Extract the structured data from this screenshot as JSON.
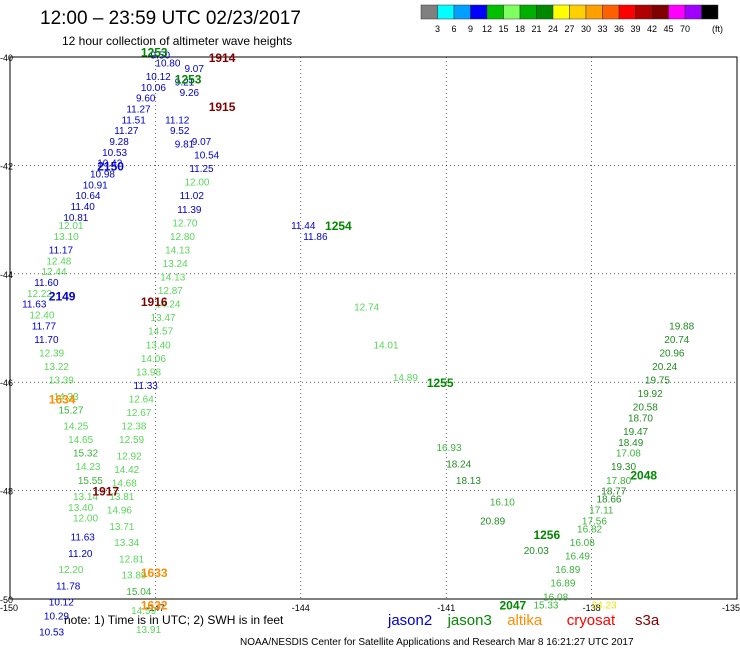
{
  "header": {
    "title": "12:00 – 23:59 UTC 02/23/2017",
    "subtitle": "12 hour collection of altimeter wave heights"
  },
  "legend": {
    "colors": [
      "#808080",
      "#00ffff",
      "#00a0ff",
      "#0000ff",
      "#00c000",
      "#80ff60",
      "#00b000",
      "#008800",
      "#ffff00",
      "#ffd000",
      "#ffa000",
      "#ff6000",
      "#ff0000",
      "#b00000",
      "#800000",
      "#ff00ff",
      "#a000ff",
      "#000000"
    ],
    "labels": [
      "3",
      "6",
      "9",
      "12",
      "15",
      "18",
      "21",
      "24",
      "27",
      "30",
      "33",
      "36",
      "39",
      "42",
      "45",
      "70"
    ],
    "unit": "(ft)"
  },
  "note": {
    "text": "note:  1) Time is in UTC;  2) SWH is in feet",
    "satellites": [
      {
        "name": "jason2",
        "color": "#0000cc"
      },
      {
        "name": "jason3",
        "color": "#008800"
      },
      {
        "name": "altika",
        "color": "#ff8c00"
      },
      {
        "name": "cryosat",
        "color": "#ff0000"
      },
      {
        "name": "s3a",
        "color": "#800000"
      }
    ]
  },
  "credit": "NOAA/NESDIS Center for Satellite Applications and Research    Mar  8 16:21:27 UTC 2017",
  "chart_data": {
    "type": "scatter",
    "title": "12:00 – 23:59 UTC 02/23/2017",
    "subtitle": "12 hour collection of altimeter wave heights",
    "xlim": [
      -150,
      -135
    ],
    "ylim": [
      -50,
      -40
    ],
    "xticks": [
      "-150",
      "-147",
      "-144",
      "-141",
      "-138",
      "-135"
    ],
    "yticks": [
      "-40",
      "-42",
      "-44",
      "-46",
      "-48",
      "-50"
    ],
    "grid": true,
    "pass_labels": [
      {
        "text": "1253",
        "lon": -147.3,
        "lat": -39.9,
        "color": "#008800"
      },
      {
        "text": "1914",
        "lon": -145.9,
        "lat": -40.0,
        "color": "#800000"
      },
      {
        "text": "1253",
        "lon": -146.6,
        "lat": -40.4,
        "color": "#008800"
      },
      {
        "text": "1915",
        "lon": -145.9,
        "lat": -40.9,
        "color": "#800000"
      },
      {
        "text": "2150",
        "lon": -148.2,
        "lat": -42.0,
        "color": "#0000cc"
      },
      {
        "text": "1254",
        "lon": -143.5,
        "lat": -43.1,
        "color": "#008800"
      },
      {
        "text": "2149",
        "lon": -149.2,
        "lat": -44.4,
        "color": "#0000cc"
      },
      {
        "text": "1916",
        "lon": -147.3,
        "lat": -44.5,
        "color": "#800000"
      },
      {
        "text": "1255",
        "lon": -141.4,
        "lat": -46.0,
        "color": "#008800"
      },
      {
        "text": "1634",
        "lon": -149.2,
        "lat": -46.3,
        "color": "#ff8c00"
      },
      {
        "text": "1917",
        "lon": -148.3,
        "lat": -48.0,
        "color": "#800000"
      },
      {
        "text": "2048",
        "lon": -137.2,
        "lat": -47.7,
        "color": "#008800"
      },
      {
        "text": "1256",
        "lon": -139.2,
        "lat": -48.8,
        "color": "#008800"
      },
      {
        "text": "1633",
        "lon": -147.3,
        "lat": -49.5,
        "color": "#ff8c00"
      },
      {
        "text": "2047",
        "lon": -139.9,
        "lat": -50.1,
        "color": "#008800"
      },
      {
        "text": "1632",
        "lon": -147.3,
        "lat": -50.1,
        "color": "#ff8c00"
      }
    ],
    "tracks": [
      {
        "name": "jason2 2150",
        "points": [
          {
            "lon": -147.1,
            "lat": -39.95,
            "v": "9.50"
          },
          {
            "lon": -147.0,
            "lat": -40.1,
            "v": "10.80"
          },
          {
            "lon": -147.2,
            "lat": -40.35,
            "v": "10.12"
          },
          {
            "lon": -147.3,
            "lat": -40.55,
            "v": "10.06"
          },
          {
            "lon": -147.4,
            "lat": -40.75,
            "v": "9.60"
          },
          {
            "lon": -147.6,
            "lat": -40.95,
            "v": "11.27"
          },
          {
            "lon": -147.7,
            "lat": -41.15,
            "v": "11.51"
          },
          {
            "lon": -147.85,
            "lat": -41.35,
            "v": "11.27"
          },
          {
            "lon": -147.95,
            "lat": -41.55,
            "v": "9.28"
          },
          {
            "lon": -148.1,
            "lat": -41.75,
            "v": "10.53"
          },
          {
            "lon": -148.2,
            "lat": -41.95,
            "v": "10.42"
          },
          {
            "lon": -148.35,
            "lat": -42.15,
            "v": "10.98"
          },
          {
            "lon": -148.5,
            "lat": -42.35,
            "v": "10.91"
          },
          {
            "lon": -148.65,
            "lat": -42.55,
            "v": "10.64"
          },
          {
            "lon": -148.75,
            "lat": -42.75,
            "v": "11.40"
          },
          {
            "lon": -148.9,
            "lat": -42.95,
            "v": "10.81"
          }
        ]
      },
      {
        "name": "jason3 1254 (descending)",
        "points": [
          {
            "lon": -149.0,
            "lat": -43.1,
            "v": "12.01"
          },
          {
            "lon": -149.1,
            "lat": -43.3,
            "v": "13.10"
          },
          {
            "lon": -149.2,
            "lat": -43.55,
            "v": "11.17"
          },
          {
            "lon": -149.25,
            "lat": -43.75,
            "v": "12.48"
          },
          {
            "lon": -149.35,
            "lat": -43.95,
            "v": "12.44"
          },
          {
            "lon": -149.5,
            "lat": -44.15,
            "v": "11.60"
          },
          {
            "lon": -149.65,
            "lat": -44.35,
            "v": "12.22"
          },
          {
            "lon": -149.75,
            "lat": -44.55,
            "v": "11.63"
          },
          {
            "lon": -149.6,
            "lat": -44.75,
            "v": "12.40"
          },
          {
            "lon": -149.55,
            "lat": -44.95,
            "v": "11.77"
          },
          {
            "lon": -149.5,
            "lat": -45.2,
            "v": "11.70"
          },
          {
            "lon": -149.4,
            "lat": -45.45,
            "v": "12.39"
          },
          {
            "lon": -149.3,
            "lat": -45.7,
            "v": "13.22"
          },
          {
            "lon": -149.2,
            "lat": -45.95,
            "v": "13.39"
          },
          {
            "lon": -149.1,
            "lat": -46.25,
            "v": "14.33"
          },
          {
            "lon": -149.0,
            "lat": -46.5,
            "v": "15.27"
          },
          {
            "lon": -148.9,
            "lat": -46.8,
            "v": "14.25"
          },
          {
            "lon": -148.8,
            "lat": -47.05,
            "v": "14.65"
          },
          {
            "lon": -148.7,
            "lat": -47.3,
            "v": "15.32"
          },
          {
            "lon": -148.65,
            "lat": -47.55,
            "v": "14.23"
          },
          {
            "lon": -148.6,
            "lat": -47.8,
            "v": "15.55"
          },
          {
            "lon": -148.7,
            "lat": -48.1,
            "v": "13.14"
          },
          {
            "lon": -148.8,
            "lat": -48.3,
            "v": "13.40"
          }
        ]
      },
      {
        "name": "jason2 2149",
        "points": [
          {
            "lon": -148.7,
            "lat": -48.5,
            "v": "12.00"
          },
          {
            "lon": -148.75,
            "lat": -48.85,
            "v": "11.63"
          },
          {
            "lon": -148.8,
            "lat": -49.15,
            "v": "11.20"
          },
          {
            "lon": -149.0,
            "lat": -49.45,
            "v": "12.20"
          },
          {
            "lon": -149.05,
            "lat": -49.75,
            "v": "11.78"
          },
          {
            "lon": -149.2,
            "lat": -50.05,
            "v": "10.12"
          },
          {
            "lon": -149.3,
            "lat": -50.3,
            "v": "10.29"
          },
          {
            "lon": -149.4,
            "lat": -50.6,
            "v": "10.53"
          }
        ]
      },
      {
        "name": "altika 1634/1633",
        "points": [
          {
            "lon": -146.2,
            "lat": -41.8,
            "v": "10.54"
          },
          {
            "lon": -146.3,
            "lat": -42.05,
            "v": "11.25"
          },
          {
            "lon": -146.4,
            "lat": -42.3,
            "v": "12.00"
          },
          {
            "lon": -146.5,
            "lat": -42.55,
            "v": "11.02"
          },
          {
            "lon": -146.55,
            "lat": -42.8,
            "v": "11.39"
          },
          {
            "lon": -146.65,
            "lat": -43.05,
            "v": "12.70"
          },
          {
            "lon": -146.7,
            "lat": -43.3,
            "v": "12.80"
          },
          {
            "lon": -146.8,
            "lat": -43.55,
            "v": "14.13"
          },
          {
            "lon": -146.85,
            "lat": -43.8,
            "v": "13.24"
          },
          {
            "lon": -146.9,
            "lat": -44.05,
            "v": "14.13"
          },
          {
            "lon": -146.95,
            "lat": -44.3,
            "v": "12.87"
          },
          {
            "lon": -147.0,
            "lat": -44.55,
            "v": "14.24"
          },
          {
            "lon": -147.1,
            "lat": -44.8,
            "v": "13.47"
          },
          {
            "lon": -147.15,
            "lat": -45.05,
            "v": "14.57"
          },
          {
            "lon": -147.2,
            "lat": -45.3,
            "v": "13.40"
          },
          {
            "lon": -147.3,
            "lat": -45.55,
            "v": "14.06"
          },
          {
            "lon": -147.4,
            "lat": -45.8,
            "v": "13.98"
          },
          {
            "lon": -147.45,
            "lat": -46.05,
            "v": "11.33"
          },
          {
            "lon": -147.55,
            "lat": -46.3,
            "v": "12.64"
          },
          {
            "lon": -147.6,
            "lat": -46.55,
            "v": "12.67"
          },
          {
            "lon": -147.7,
            "lat": -46.8,
            "v": "12.38"
          },
          {
            "lon": -147.75,
            "lat": -47.05,
            "v": "12.59"
          },
          {
            "lon": -147.8,
            "lat": -47.35,
            "v": "12.92"
          },
          {
            "lon": -147.85,
            "lat": -47.6,
            "v": "14.42"
          },
          {
            "lon": -147.9,
            "lat": -47.85,
            "v": "14.68"
          },
          {
            "lon": -147.95,
            "lat": -48.1,
            "v": "13.81"
          },
          {
            "lon": -148.0,
            "lat": -48.35,
            "v": "14.96"
          },
          {
            "lon": -147.95,
            "lat": -48.65,
            "v": "13.71"
          },
          {
            "lon": -147.85,
            "lat": -48.95,
            "v": "13.34"
          },
          {
            "lon": -147.75,
            "lat": -49.25,
            "v": "12.81"
          },
          {
            "lon": -147.7,
            "lat": -49.55,
            "v": "13.89"
          },
          {
            "lon": -147.6,
            "lat": -49.85,
            "v": "15.04"
          },
          {
            "lon": -147.5,
            "lat": -50.2,
            "v": "14.59"
          },
          {
            "lon": -147.4,
            "lat": -50.55,
            "v": "13.91"
          }
        ]
      },
      {
        "name": "jason3 1253 (near apex)",
        "points": [
          {
            "lon": -146.4,
            "lat": -40.2,
            "v": "9.07"
          },
          {
            "lon": -146.6,
            "lat": -40.45,
            "v": "9.21"
          },
          {
            "lon": -146.5,
            "lat": -40.65,
            "v": "9.26"
          },
          {
            "lon": -146.8,
            "lat": -41.15,
            "v": "11.12"
          },
          {
            "lon": -146.7,
            "lat": -41.35,
            "v": "9.52"
          },
          {
            "lon": -146.25,
            "lat": -41.55,
            "v": "9.07"
          },
          {
            "lon": -146.6,
            "lat": -41.6,
            "v": "9.81"
          }
        ]
      },
      {
        "name": "jason3 1254 (descending right)",
        "points": [
          {
            "lon": -144.2,
            "lat": -43.1,
            "v": "11.44"
          },
          {
            "lon": -143.95,
            "lat": -43.3,
            "v": "11.86"
          },
          {
            "lon": -142.9,
            "lat": -44.6,
            "v": "12.74"
          },
          {
            "lon": -142.5,
            "lat": -45.3,
            "v": "14.01"
          },
          {
            "lon": -142.1,
            "lat": -45.9,
            "v": "14.89"
          },
          {
            "lon": -141.2,
            "lat": -47.2,
            "v": "16.93"
          },
          {
            "lon": -141.0,
            "lat": -47.5,
            "v": "18.24"
          },
          {
            "lon": -140.8,
            "lat": -47.8,
            "v": "18.13"
          },
          {
            "lon": -140.1,
            "lat": -48.2,
            "v": "16.10"
          },
          {
            "lon": -140.3,
            "lat": -48.55,
            "v": "20.89"
          }
        ]
      },
      {
        "name": "jason3 2047/2048 (ascending)",
        "points": [
          {
            "lon": -139.2,
            "lat": -50.1,
            "v": "15.33"
          },
          {
            "lon": -139.0,
            "lat": -49.95,
            "v": "16.08"
          },
          {
            "lon": -138.85,
            "lat": -49.7,
            "v": "16.89"
          },
          {
            "lon": -138.75,
            "lat": -49.45,
            "v": "16.89"
          },
          {
            "lon": -138.55,
            "lat": -49.2,
            "v": "16.49"
          },
          {
            "lon": -138.45,
            "lat": -48.95,
            "v": "16.08"
          },
          {
            "lon": -138.3,
            "lat": -48.7,
            "v": "16.82"
          },
          {
            "lon": -138.2,
            "lat": -48.55,
            "v": "17.56"
          },
          {
            "lon": -138.05,
            "lat": -48.35,
            "v": "17.11"
          },
          {
            "lon": -137.9,
            "lat": -48.15,
            "v": "18.66"
          },
          {
            "lon": -137.8,
            "lat": -48.0,
            "v": "18.77"
          },
          {
            "lon": -137.7,
            "lat": -47.8,
            "v": "17.80"
          },
          {
            "lon": -137.6,
            "lat": -47.55,
            "v": "19.30"
          },
          {
            "lon": -137.5,
            "lat": -47.3,
            "v": "17.08"
          },
          {
            "lon": -137.45,
            "lat": -47.1,
            "v": "18.49"
          },
          {
            "lon": -137.35,
            "lat": -46.9,
            "v": "19.47"
          },
          {
            "lon": -137.25,
            "lat": -46.65,
            "v": "18.70"
          },
          {
            "lon": -137.15,
            "lat": -46.45,
            "v": "20.58"
          },
          {
            "lon": -137.05,
            "lat": -46.2,
            "v": "19.92"
          },
          {
            "lon": -136.9,
            "lat": -45.95,
            "v": "19.75"
          },
          {
            "lon": -136.75,
            "lat": -45.7,
            "v": "20.24"
          },
          {
            "lon": -136.6,
            "lat": -45.45,
            "v": "20.96"
          },
          {
            "lon": -136.5,
            "lat": -45.2,
            "v": "20.74"
          },
          {
            "lon": -136.4,
            "lat": -44.95,
            "v": "19.88"
          }
        ]
      },
      {
        "name": "jason3 1256 (altika crossing)",
        "points": [
          {
            "lon": -139.4,
            "lat": -49.1,
            "v": "20.03"
          },
          {
            "lon": -138.0,
            "lat": -50.1,
            "v": "24.23"
          }
        ]
      }
    ]
  }
}
